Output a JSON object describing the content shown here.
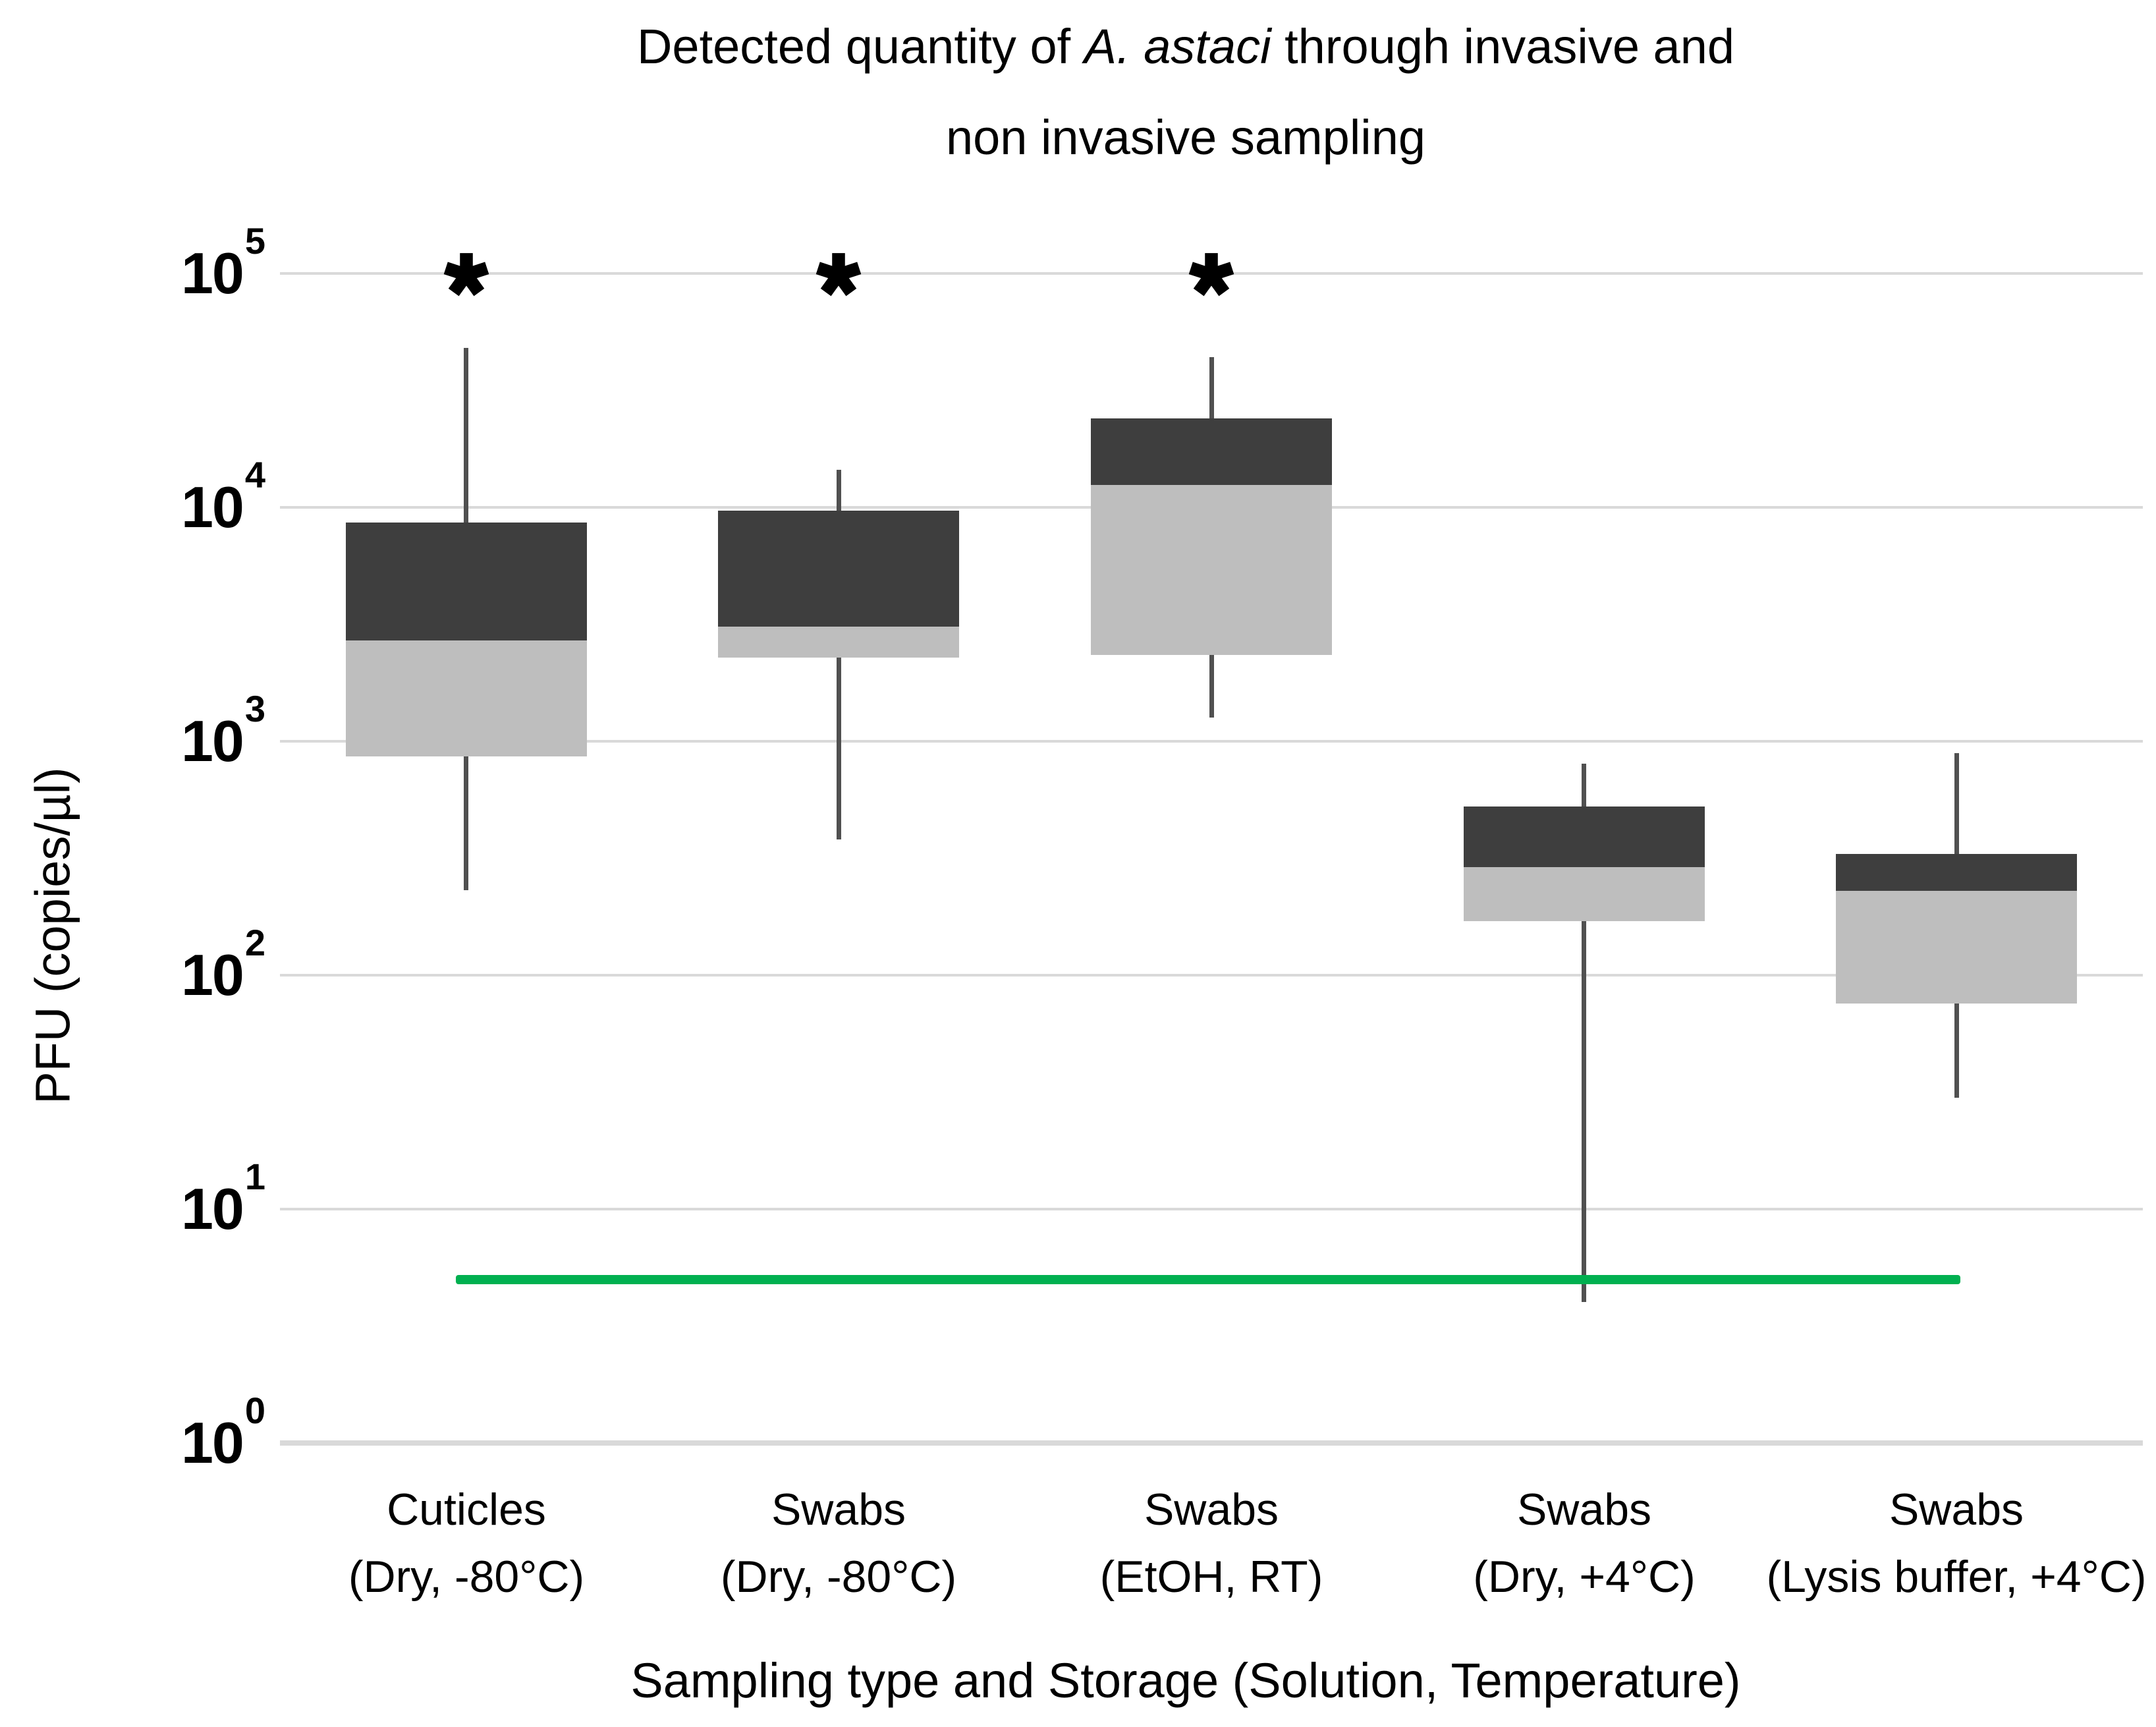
{
  "title": {
    "line1_pre": "Detected quantity of ",
    "line1_italic": "A. astaci",
    "line1_post": "  through invasive and",
    "line2": "non invasive sampling"
  },
  "y_axis_label": "PFU (copies/µl)",
  "x_axis_label": "Sampling type and Storage (Solution, Temperature)",
  "chart_data": {
    "type": "box",
    "title": "Detected quantity of A. astaci through invasive and non invasive sampling",
    "xlabel": "Sampling type and Storage (Solution, Temperature)",
    "ylabel": "PFU (copies/µl)",
    "y_scale": "log10",
    "ylim": [
      1,
      100000
    ],
    "y_tick_base": "10",
    "y_tick_exponents": [
      5,
      4,
      3,
      2,
      1,
      0
    ],
    "grid": "horizontal",
    "legend_position": "none",
    "significance_marker": "*",
    "categories": [
      {
        "label_line1": "Cuticles",
        "label_line2": "(Dry, -80°C)",
        "whisker_low": 230,
        "q1": 860,
        "median": 2700,
        "q3": 8600,
        "whisker_high": 48000,
        "significant": true
      },
      {
        "label_line1": "Swabs",
        "label_line2": "(Dry, -80°C)",
        "whisker_low": 380,
        "q1": 2280,
        "median": 3100,
        "q3": 9700,
        "whisker_high": 14500,
        "significant": true
      },
      {
        "label_line1": "Swabs",
        "label_line2": "(EtOH, RT)",
        "whisker_low": 1270,
        "q1": 2340,
        "median": 12500,
        "q3": 24000,
        "whisker_high": 44000,
        "significant": true
      },
      {
        "label_line1": "Swabs",
        "label_line2": "(Dry, +4°C)",
        "whisker_low": 4,
        "q1": 170,
        "median": 290,
        "q3": 525,
        "whisker_high": 800,
        "significant": false
      },
      {
        "label_line1": "Swabs",
        "label_line2": "(Lysis buffer, +4°C)",
        "whisker_low": 30,
        "q1": 76,
        "median": 230,
        "q3": 330,
        "whisker_high": 890,
        "significant": false
      }
    ],
    "reference_line": {
      "value": 5,
      "color": "#00B050"
    },
    "colors": {
      "box_upper": "#3E3E3E",
      "box_lower": "#BEBEBE",
      "whisker": "#505050",
      "gridline": "#D9D9D9",
      "significance": "#000000"
    }
  }
}
